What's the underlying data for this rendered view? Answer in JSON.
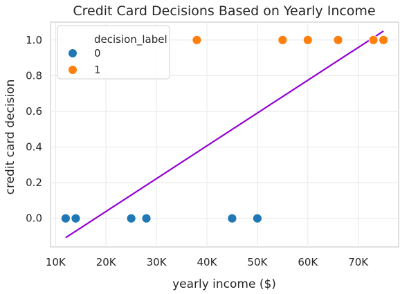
{
  "chart_data": {
    "type": "scatter",
    "title": "Credit Card Decisions Based on Yearly Income",
    "xlabel": "yearly income ($)",
    "ylabel": "credit card decision",
    "xlim": [
      9000,
      78000
    ],
    "ylim": [
      -0.16,
      1.1
    ],
    "xticks": [
      10000,
      20000,
      30000,
      40000,
      50000,
      60000,
      70000
    ],
    "xtick_labels": [
      "10K",
      "20K",
      "30K",
      "40K",
      "50K",
      "60K",
      "70K"
    ],
    "yticks": [
      0.0,
      0.2,
      0.4,
      0.6,
      0.8,
      1.0
    ],
    "ytick_labels": [
      "0.0",
      "0.2",
      "0.4",
      "0.6",
      "0.8",
      "1.0"
    ],
    "grid": true,
    "legend": {
      "title": "decision_label",
      "placement": "top-left",
      "entries": [
        {
          "label": "0",
          "color": "#1f77b4"
        },
        {
          "label": "1",
          "color": "#ff7f0e"
        }
      ]
    },
    "series": [
      {
        "name": "0",
        "color": "#1f77b4",
        "points": [
          {
            "x": 12000,
            "y": 0
          },
          {
            "x": 14000,
            "y": 0
          },
          {
            "x": 25000,
            "y": 0
          },
          {
            "x": 28000,
            "y": 0
          },
          {
            "x": 45000,
            "y": 0
          },
          {
            "x": 50000,
            "y": 0
          }
        ]
      },
      {
        "name": "1",
        "color": "#ff7f0e",
        "points": [
          {
            "x": 38000,
            "y": 1
          },
          {
            "x": 55000,
            "y": 1
          },
          {
            "x": 60000,
            "y": 1
          },
          {
            "x": 66000,
            "y": 1
          },
          {
            "x": 73000,
            "y": 1
          },
          {
            "x": 75000,
            "y": 1
          }
        ]
      }
    ],
    "fit_line": {
      "color": "#9400d3",
      "points": [
        {
          "x": 12000,
          "y": -0.108
        },
        {
          "x": 75000,
          "y": 1.05
        }
      ]
    }
  }
}
